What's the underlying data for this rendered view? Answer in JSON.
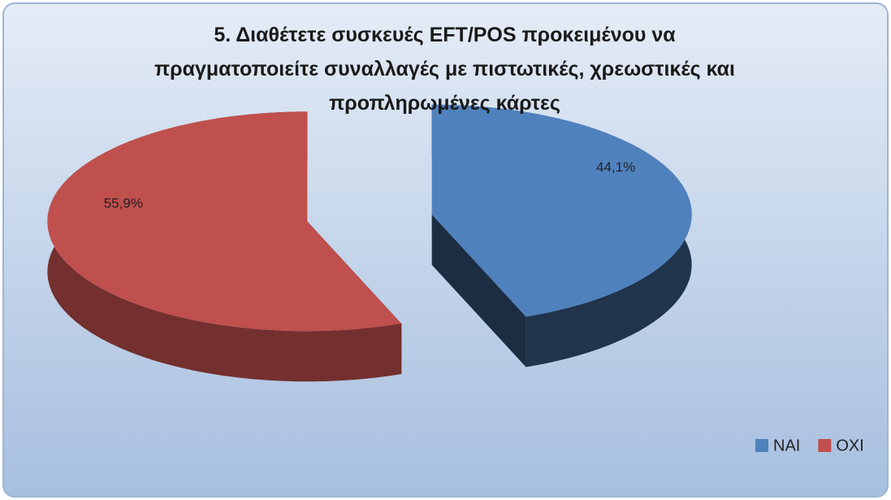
{
  "chart_data": {
    "type": "pie",
    "title": "5. Διαθέτετε συσκευές EFT/POS προκειμένου να πραγματοποιείτε συναλλαγές με πιστωτικές, χρεωστικές και προπληρωμένες κάρτες",
    "categories": [
      "ΝΑΙ",
      "ΟΧΙ"
    ],
    "series": [
      {
        "name": "share",
        "values": [
          44.1,
          55.9
        ],
        "value_labels": [
          "44,1%",
          "55,9%"
        ]
      }
    ],
    "colors": [
      "#4f81bd",
      "#c0504d"
    ],
    "legend": "bottom-right"
  }
}
